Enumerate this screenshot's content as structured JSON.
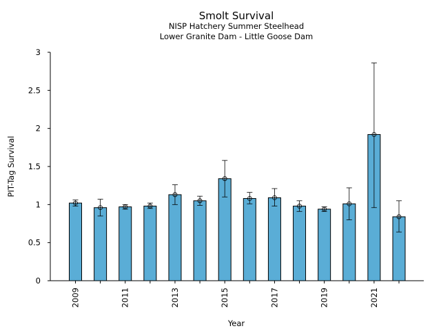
{
  "chart_data": {
    "type": "bar",
    "title": "Smolt Survival",
    "subtitle_lines": [
      "NISP Hatchery Summer Steelhead",
      "Lower Granite Dam - Little Goose Dam"
    ],
    "xlabel": "Year",
    "ylabel": "PIT-Tag Survival",
    "ylim": [
      0,
      3
    ],
    "yticks": [
      0,
      0.5,
      1,
      1.5,
      2,
      2.5,
      3
    ],
    "ytick_labels": [
      "0",
      "0.5",
      "1",
      "1.5",
      "2",
      "2.5",
      "3"
    ],
    "categories": [
      2009,
      2010,
      2011,
      2012,
      2013,
      2014,
      2015,
      2016,
      2017,
      2018,
      2019,
      2020,
      2021,
      2022
    ],
    "xtick_labels": [
      "2009",
      "",
      "2011",
      "",
      "2013",
      "",
      "2015",
      "",
      "2017",
      "",
      "2019",
      "",
      "2021",
      ""
    ],
    "values": [
      1.02,
      0.96,
      0.97,
      0.98,
      1.13,
      1.05,
      1.34,
      1.08,
      1.09,
      0.98,
      0.94,
      1.01,
      1.92,
      0.84
    ],
    "error_low": [
      0.98,
      0.85,
      0.94,
      0.95,
      1.0,
      0.99,
      1.1,
      1.01,
      0.98,
      0.91,
      0.91,
      0.8,
      0.96,
      0.64
    ],
    "error_high": [
      1.06,
      1.07,
      1.0,
      1.02,
      1.26,
      1.11,
      1.58,
      1.16,
      1.21,
      1.05,
      0.97,
      1.22,
      2.86,
      1.05
    ],
    "grid": false,
    "colors": {
      "bar_fill": "#5aadd6",
      "bar_edge": "#000000",
      "axis": "#000000",
      "error": "#000000"
    }
  }
}
